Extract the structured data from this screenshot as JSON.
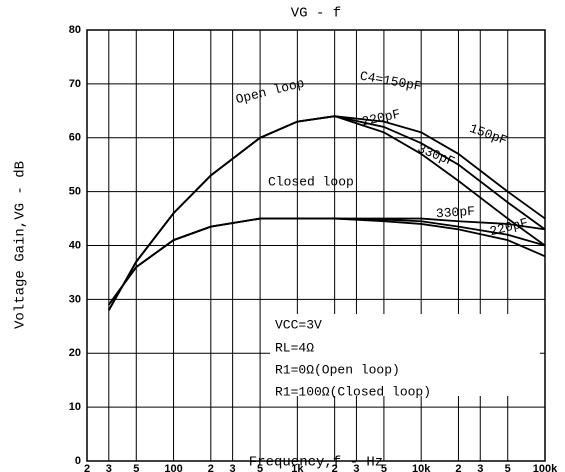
{
  "chart_data": {
    "type": "line",
    "title": "VG - f",
    "x_label": "Frequency,f - Hz",
    "y_label": "Voltage Gain,VG - dB",
    "log_x": true,
    "grid": true,
    "color": "#000000",
    "x": [
      30,
      50,
      100,
      200,
      500,
      1000,
      2000,
      5000,
      10000,
      20000,
      50000,
      100000
    ],
    "series": [
      {
        "color": "#000000",
        "values": [
          28,
          37,
          46,
          53,
          60,
          63,
          64,
          63,
          61,
          57,
          50,
          45
        ]
      },
      {
        "color": "#000000",
        "values": [
          28,
          37,
          46,
          53,
          60,
          63,
          64,
          62,
          59,
          55,
          48,
          43
        ]
      },
      {
        "color": "#000000",
        "values": [
          28,
          37,
          46,
          53,
          60,
          63,
          64,
          61,
          57,
          52,
          45,
          40
        ]
      },
      {
        "color": "#000000",
        "values": [
          29,
          36,
          41,
          43.5,
          45,
          45,
          45,
          45,
          45,
          44.5,
          44,
          43
        ]
      },
      {
        "color": "#000000",
        "values": [
          29,
          36,
          41,
          43.5,
          45,
          45,
          45,
          44.8,
          44.5,
          43.5,
          42,
          40
        ]
      },
      {
        "color": "#000000",
        "values": [
          29,
          36,
          41,
          43.5,
          45,
          45,
          45,
          44.5,
          44,
          43,
          41,
          38
        ]
      }
    ],
    "xlim": [
      20,
      100000
    ],
    "xticks": [
      {
        "value": 20,
        "label": "2"
      },
      {
        "value": 30,
        "label": "3"
      },
      {
        "value": 50,
        "label": "5"
      },
      100,
      {
        "value": 200,
        "label": "2"
      },
      {
        "value": 300,
        "label": "3"
      },
      {
        "value": 500,
        "label": "5"
      },
      {
        "value": 1000,
        "label": "1k"
      },
      {
        "value": 2000,
        "label": "2"
      },
      {
        "value": 3000,
        "label": "3"
      },
      {
        "value": 5000,
        "label": "5"
      },
      {
        "value": 10000,
        "label": "10k"
      },
      {
        "value": 20000,
        "label": "2"
      },
      {
        "value": 30000,
        "label": "3"
      },
      {
        "value": 50000,
        "label": "5"
      },
      {
        "value": 100000,
        "label": "100k"
      }
    ],
    "ylim": [
      0,
      80
    ],
    "yticks": [
      0,
      10,
      20,
      30,
      40,
      50,
      60,
      70,
      80
    ],
    "annotations": [
      "Open loop",
      "C4=150pF",
      "150pF",
      "220pF",
      "330pF",
      "Closed loop",
      "330pF",
      "220pF"
    ],
    "conditions": [
      "VCC=3V",
      "RL=4Ω",
      "R1=0Ω(Open loop)",
      "R1=100Ω(Closed loop)"
    ]
  }
}
